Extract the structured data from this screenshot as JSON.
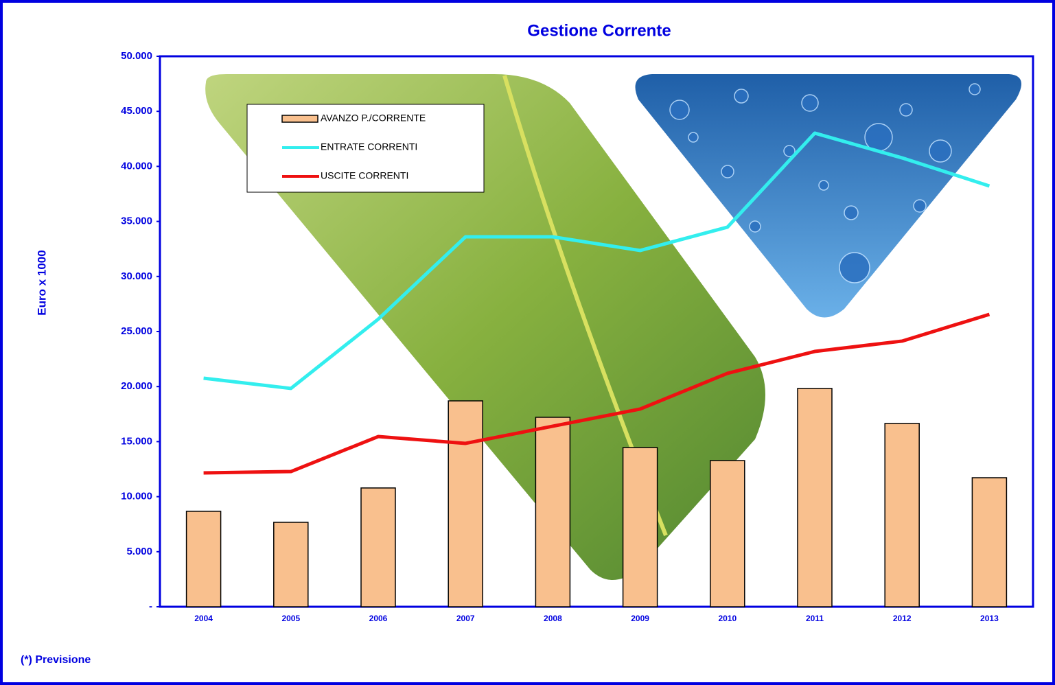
{
  "chart_data": {
    "type": "bar-line",
    "title": "Gestione Corrente",
    "y_label": "Euro x 1000",
    "footnote": "(*) Previsione",
    "categories": [
      "2004",
      "2005",
      "2006",
      "2007",
      "2008",
      "2009",
      "2010",
      "2011",
      "2012",
      "2013"
    ],
    "series": [
      {
        "name": "AVANZO P./CORRENTE",
        "type": "bar",
        "color": "#f9c08e",
        "values": [
          8670,
          7670,
          10790,
          18700,
          17210,
          14460,
          13280,
          19830,
          16650,
          11720
        ]
      },
      {
        "name": "ENTRATE CORRENTI",
        "type": "line",
        "color": "#33eeee",
        "values": [
          20760,
          19830,
          26120,
          33600,
          33600,
          32360,
          34480,
          43020,
          40770,
          38220
        ]
      },
      {
        "name": "USCITE CORRENTI",
        "type": "line",
        "color": "#ee1111",
        "values": [
          12160,
          12280,
          15460,
          14840,
          16400,
          17960,
          21200,
          23190,
          24130,
          26560
        ]
      }
    ],
    "ylim": [
      0,
      50000
    ],
    "yticks": [
      {
        "value": 0,
        "label": "-"
      },
      {
        "value": 5000,
        "label": "5.000"
      },
      {
        "value": 10000,
        "label": "10.000"
      },
      {
        "value": 15000,
        "label": "15.000"
      },
      {
        "value": 20000,
        "label": "20.000"
      },
      {
        "value": 25000,
        "label": "25.000"
      },
      {
        "value": 30000,
        "label": "30.000"
      },
      {
        "value": 35000,
        "label": "35.000"
      },
      {
        "value": 40000,
        "label": "40.000"
      },
      {
        "value": 45000,
        "label": "45.000"
      },
      {
        "value": 50000,
        "label": "50.000"
      }
    ]
  }
}
